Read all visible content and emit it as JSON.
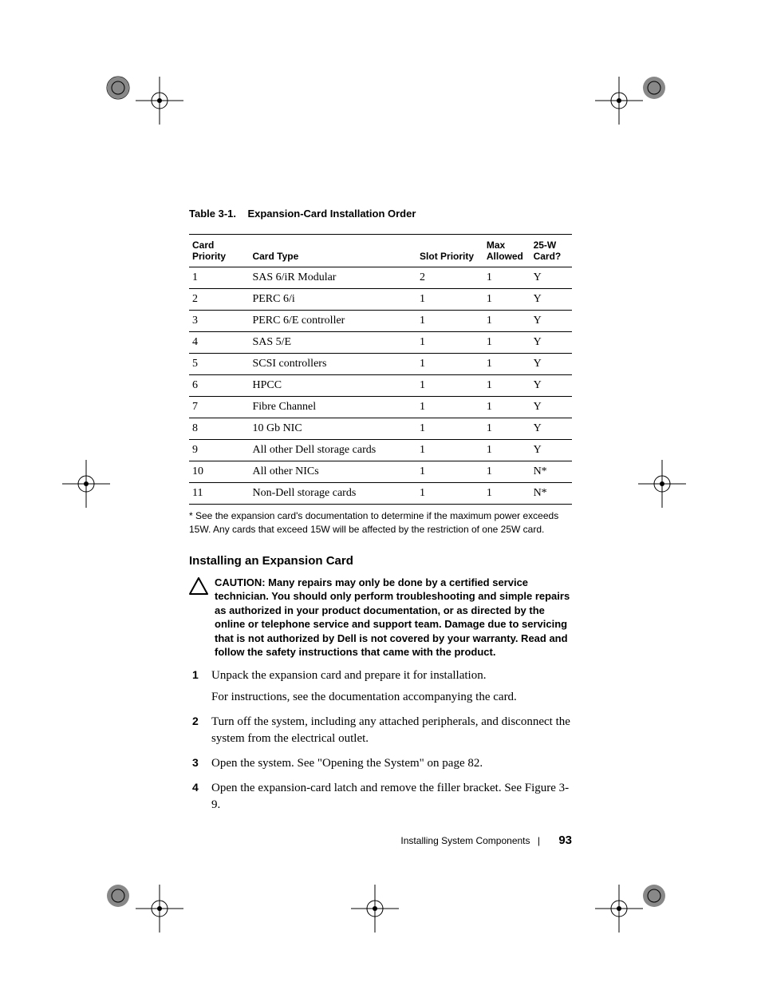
{
  "table": {
    "caption_prefix": "Table 3-1.",
    "caption_title": "Expansion-Card Installation Order",
    "headers": {
      "card_priority": "Card Priority",
      "card_type": "Card Type",
      "slot_priority": "Slot Priority",
      "max_allowed": "Max Allowed",
      "card_25w": "25-W Card?"
    },
    "rows": [
      {
        "priority": "1",
        "type": "SAS 6/iR Modular",
        "slot": "2",
        "max": "1",
        "w": "Y"
      },
      {
        "priority": "2",
        "type": "PERC 6/i",
        "slot": "1",
        "max": "1",
        "w": "Y"
      },
      {
        "priority": "3",
        "type": "PERC 6/E controller",
        "slot": "1",
        "max": "1",
        "w": "Y"
      },
      {
        "priority": "4",
        "type": "SAS 5/E",
        "slot": "1",
        "max": "1",
        "w": "Y"
      },
      {
        "priority": "5",
        "type": "SCSI controllers",
        "slot": "1",
        "max": "1",
        "w": "Y"
      },
      {
        "priority": "6",
        "type": "HPCC",
        "slot": "1",
        "max": "1",
        "w": "Y"
      },
      {
        "priority": "7",
        "type": "Fibre Channel",
        "slot": "1",
        "max": "1",
        "w": "Y"
      },
      {
        "priority": "8",
        "type": "10 Gb NIC",
        "slot": "1",
        "max": "1",
        "w": "Y"
      },
      {
        "priority": "9",
        "type": "All other Dell storage cards",
        "slot": "1",
        "max": "1",
        "w": "Y"
      },
      {
        "priority": "10",
        "type": "All other NICs",
        "slot": "1",
        "max": "1",
        "w": "N*"
      },
      {
        "priority": "11",
        "type": "Non-Dell storage cards",
        "slot": "1",
        "max": "1",
        "w": "N*"
      }
    ],
    "footnote": "* See the expansion card's documentation to determine if the maximum power exceeds 15W. Any cards that exceed 15W will be affected by the restriction of one 25W card."
  },
  "section": {
    "title": "Installing an Expansion Card",
    "caution_label": "CAUTION:",
    "caution_text": "Many repairs may only be done by a certified service technician. You should only perform troubleshooting and simple repairs as authorized in your product documentation, or as directed by the online or telephone service and support team. Damage due to servicing that is not authorized by Dell is not covered by your warranty. Read and follow the safety instructions that came with the product.",
    "steps": [
      {
        "text": "Unpack the expansion card and prepare it for installation.",
        "sub": "For instructions, see the documentation accompanying the card."
      },
      {
        "text": "Turn off the system, including any attached peripherals, and disconnect the system from the electrical outlet."
      },
      {
        "text": "Open the system. See \"Opening the System\" on page 82."
      },
      {
        "text": "Open the expansion-card latch and remove the filler bracket. See Figure 3-9."
      }
    ]
  },
  "footer": {
    "chapter": "Installing System Components",
    "page": "93"
  }
}
